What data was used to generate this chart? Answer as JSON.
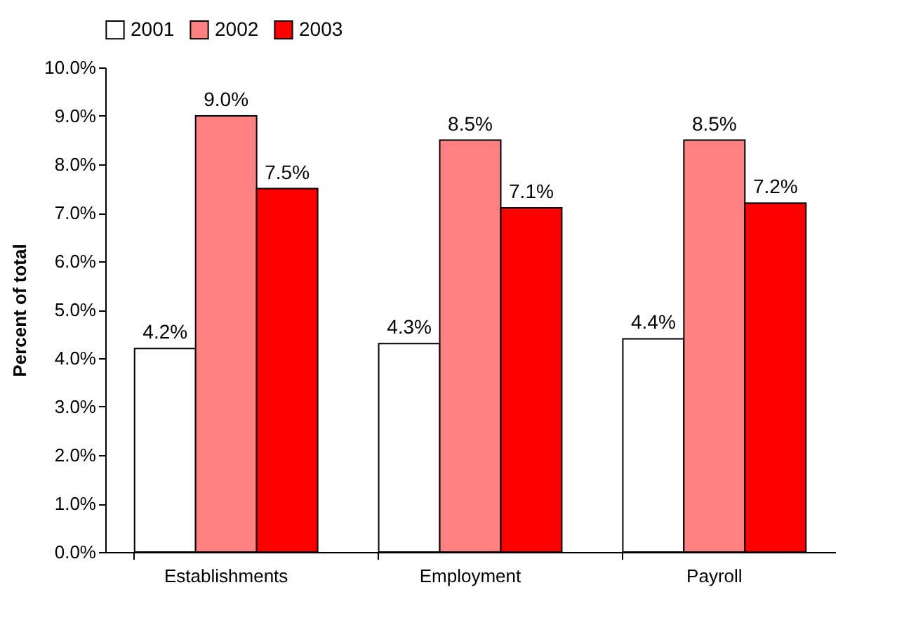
{
  "chart_data": {
    "type": "bar",
    "ylabel": "Percent of total",
    "categories": [
      "Establishments",
      "Employment",
      "Payroll"
    ],
    "series": [
      {
        "name": "2001",
        "color": "#ffffff",
        "values": [
          4.2,
          4.3,
          4.4
        ],
        "value_labels": [
          "4.2%",
          "4.3%",
          "4.4%"
        ]
      },
      {
        "name": "2002",
        "color": "#ff8080",
        "values": [
          9.0,
          8.5,
          8.5
        ],
        "value_labels": [
          "9.0%",
          "8.5%",
          "8.5%"
        ]
      },
      {
        "name": "2003",
        "color": "#ff0000",
        "values": [
          7.5,
          7.1,
          7.2
        ],
        "value_labels": [
          "7.5%",
          "7.1%",
          "7.2%"
        ]
      }
    ],
    "ylim": [
      0,
      10
    ],
    "yticks": [
      {
        "value": 0,
        "label": "0.0%"
      },
      {
        "value": 1,
        "label": "1.0%"
      },
      {
        "value": 2,
        "label": "2.0%"
      },
      {
        "value": 3,
        "label": "3.0%"
      },
      {
        "value": 4,
        "label": "4.0%"
      },
      {
        "value": 5,
        "label": "5.0%"
      },
      {
        "value": 6,
        "label": "6.0%"
      },
      {
        "value": 7,
        "label": "7.0%"
      },
      {
        "value": 8,
        "label": "8.0%"
      },
      {
        "value": 9,
        "label": "9.0%"
      },
      {
        "value": 10,
        "label": "10.0%"
      }
    ],
    "legend": "top",
    "grid": false
  }
}
